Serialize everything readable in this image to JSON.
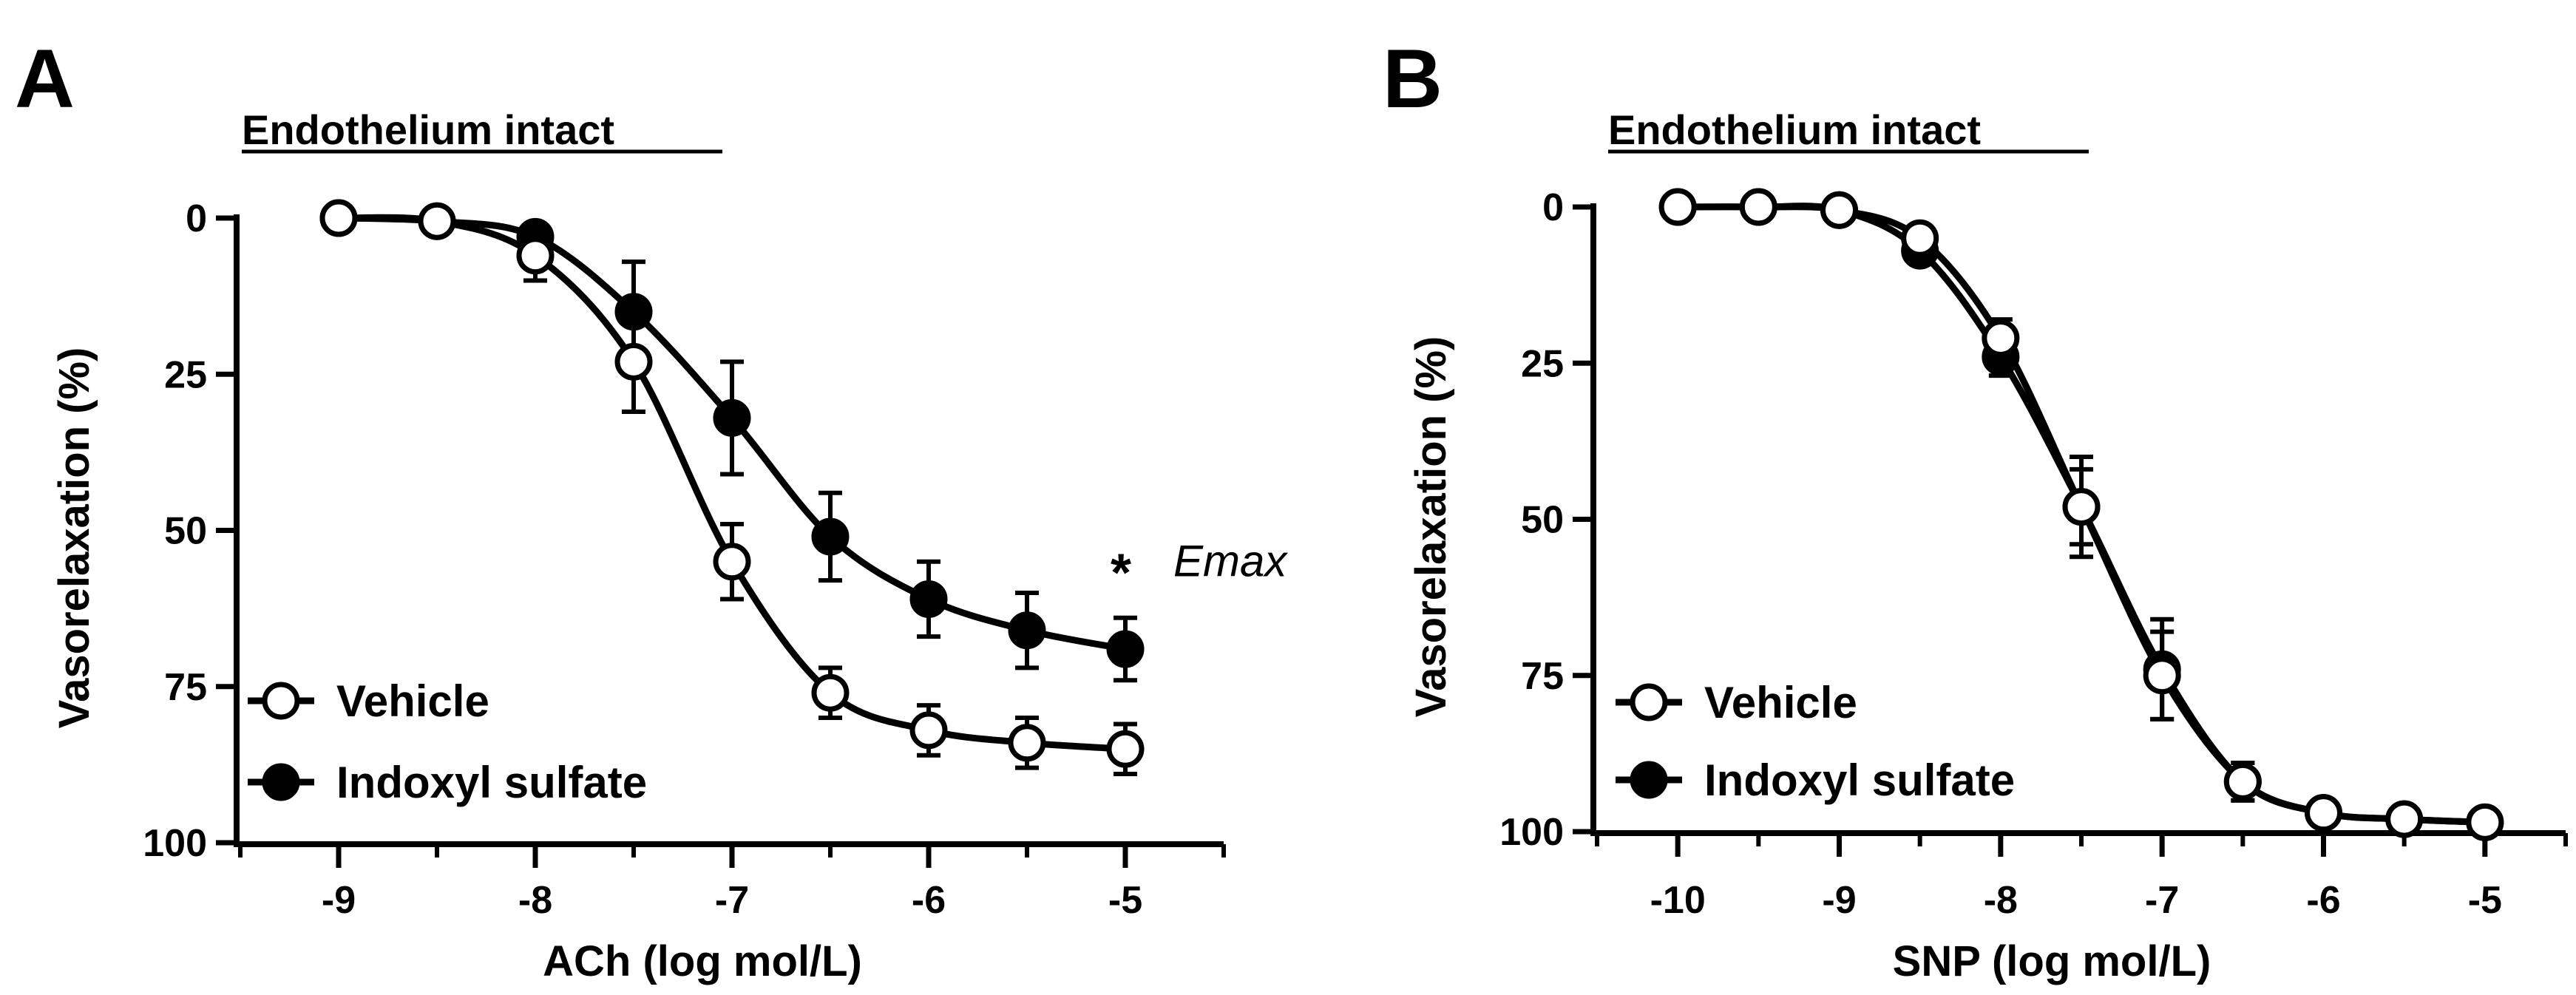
{
  "chart_data": [
    {
      "type": "line",
      "panel_label": "A",
      "title": "Endothelium intact",
      "xlabel": "ACh (log mol/L)",
      "ylabel": "Vasorelaxation (%)",
      "xlim": [
        -9.5,
        -4.5
      ],
      "ylim": [
        0,
        100
      ],
      "y_inverted": true,
      "xticks": [
        -9,
        -8,
        -7,
        -6,
        -5
      ],
      "xticks_minor": [
        -9.5,
        -8.5,
        -7.5,
        -6.5,
        -5.5,
        -4.5
      ],
      "yticks": [
        0,
        25,
        50,
        75,
        100
      ],
      "grid": false,
      "legend_placement": "bottom-left",
      "annotation": {
        "symbol": "*",
        "text": "Emax",
        "x": -5,
        "y": 54
      },
      "series": [
        {
          "name": "Vehicle",
          "marker": "open-circle",
          "x": [
            -9,
            -8.5,
            -8,
            -7.5,
            -7,
            -6.5,
            -6,
            -5.5,
            -5
          ],
          "y": [
            0,
            0.5,
            6,
            23,
            55,
            76,
            82,
            84,
            85
          ],
          "err": [
            0,
            1,
            4,
            8,
            6,
            4,
            4,
            4,
            4
          ]
        },
        {
          "name": "Indoxyl sulfate",
          "marker": "filled-circle",
          "x": [
            -9,
            -8.5,
            -8,
            -7.5,
            -7,
            -6.5,
            -6,
            -5.5,
            -5
          ],
          "y": [
            0,
            0.5,
            3,
            15,
            32,
            51,
            61,
            66,
            69
          ],
          "err": [
            0,
            1,
            2,
            8,
            9,
            7,
            6,
            6,
            5
          ]
        }
      ]
    },
    {
      "type": "line",
      "panel_label": "B",
      "title": "Endothelium intact",
      "xlabel": "SNP (log mol/L)",
      "ylabel": "Vasorelaxation (%)",
      "xlim": [
        -10.5,
        -4.5
      ],
      "ylim": [
        0,
        100
      ],
      "y_inverted": true,
      "xticks": [
        -10,
        -9,
        -8,
        -7,
        -6,
        -5
      ],
      "xticks_minor": [
        -10.5,
        -9.5,
        -8.5,
        -7.5,
        -6.5,
        -5.5,
        -4.5
      ],
      "yticks": [
        0,
        25,
        50,
        75,
        100
      ],
      "grid": false,
      "legend_placement": "bottom-left",
      "series": [
        {
          "name": "Vehicle",
          "marker": "open-circle",
          "x": [
            -10,
            -9.5,
            -9,
            -8.5,
            -8,
            -7.5,
            -7,
            -6.5,
            -6,
            -5.5,
            -5
          ],
          "y": [
            0,
            0,
            0.5,
            5,
            21,
            48,
            75,
            92,
            97,
            98,
            98.5
          ],
          "err": [
            0,
            0,
            1,
            2,
            3,
            6,
            7,
            3,
            1,
            1,
            1
          ]
        },
        {
          "name": "Indoxyl sulfate",
          "marker": "filled-circle",
          "x": [
            -10,
            -9.5,
            -9,
            -8.5,
            -8,
            -7.5,
            -7,
            -6.5,
            -6,
            -5.5,
            -5
          ],
          "y": [
            0,
            0,
            0.5,
            7,
            24,
            48,
            74,
            92,
            97,
            98,
            98.5
          ],
          "err": [
            0,
            0,
            1,
            2,
            3,
            8,
            8,
            3,
            1,
            1,
            1
          ]
        }
      ]
    }
  ]
}
